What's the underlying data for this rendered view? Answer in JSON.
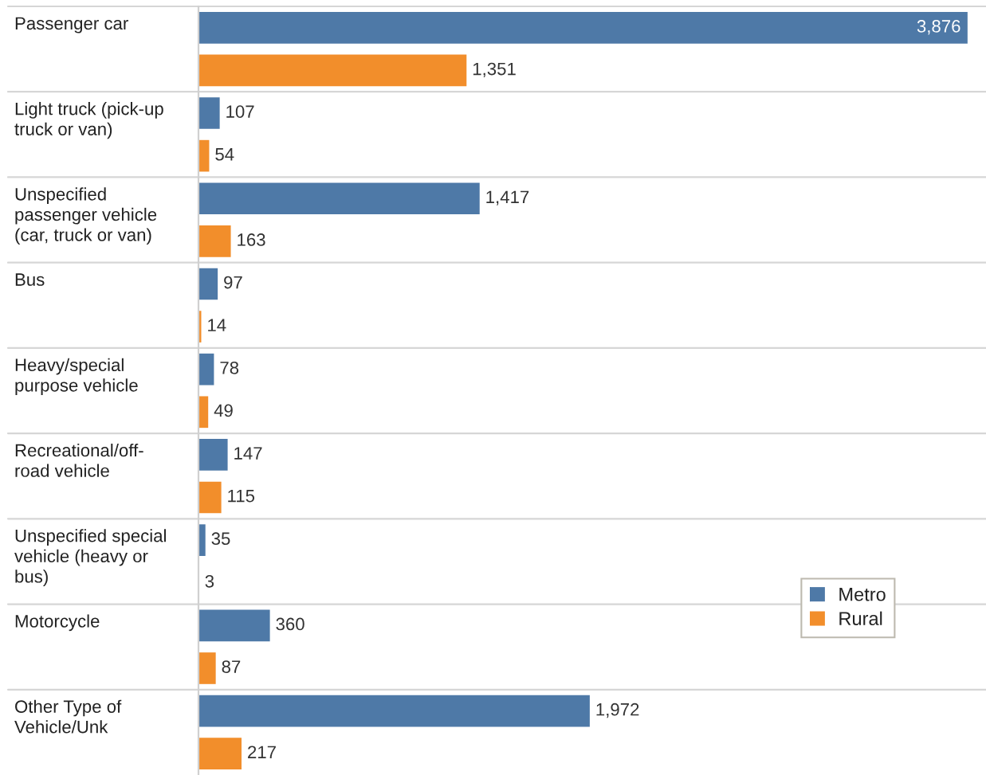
{
  "chart_data": {
    "type": "bar",
    "orientation": "horizontal",
    "categories": [
      "Passenger car",
      "Light truck (pick-up truck or van)",
      "Unspecified passenger vehicle (car, truck or van)",
      "Bus",
      "Heavy/special purpose vehicle",
      "Recreational/off-road vehicle",
      "Unspecified special vehicle (heavy or bus)",
      "Motorcycle",
      "Other Type of Vehicle/Unk"
    ],
    "series": [
      {
        "name": "Metro",
        "color": "#4e79a7",
        "values": [
          3876,
          107,
          1417,
          97,
          78,
          147,
          35,
          360,
          1972
        ],
        "value_labels": [
          "3,876",
          "107",
          "1,417",
          "97",
          "78",
          "147",
          "35",
          "360",
          "1,972"
        ]
      },
      {
        "name": "Rural",
        "color": "#f28e2b",
        "values": [
          1351,
          54,
          163,
          14,
          49,
          115,
          3,
          87,
          217
        ],
        "value_labels": [
          "1,351",
          "54",
          "163",
          "14",
          "49",
          "115",
          "3",
          "87",
          "217"
        ]
      }
    ],
    "grid": "y",
    "legend": "bottom right",
    "tick_labels": "y"
  }
}
